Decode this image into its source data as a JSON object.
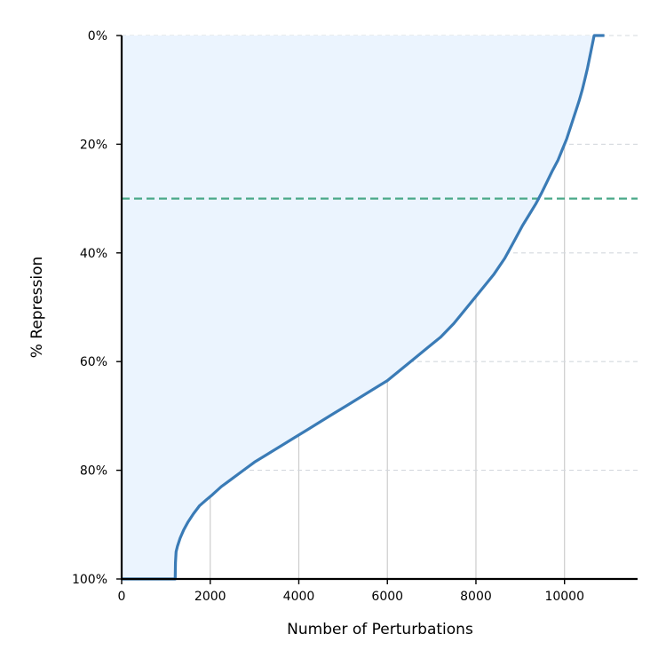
{
  "chart_data": {
    "type": "area",
    "title": "",
    "xlabel": "Number of Perturbations",
    "ylabel": "% Repression",
    "xlim": [
      0,
      11650
    ],
    "ylim": [
      0,
      100
    ],
    "y_axis_inverted": true,
    "x_ticks": [
      0,
      2000,
      4000,
      6000,
      8000,
      10000
    ],
    "x_tick_labels": [
      "0",
      "2000",
      "4000",
      "6000",
      "8000",
      "10000"
    ],
    "y_ticks": [
      0,
      20,
      40,
      60,
      80,
      100
    ],
    "y_tick_labels": [
      "0%",
      "20%",
      "40%",
      "60%",
      "80%",
      "100%"
    ],
    "grid": {
      "x": "solid vertical",
      "y": "dashed horizontal"
    },
    "threshold": {
      "y": 30,
      "style": "dashed"
    },
    "series": [
      {
        "x": [
          0,
          1210,
          1215,
          1230,
          1260,
          1320,
          1400,
          1500,
          1620,
          1760,
          1900,
          2050,
          2250,
          2500,
          2750,
          3000,
          3300,
          3600,
          3900,
          4200,
          4500,
          4800,
          5100,
          5400,
          5700,
          6000,
          6300,
          6600,
          6900,
          7200,
          7500,
          7800,
          8100,
          8400,
          8650,
          8850,
          9050,
          9200,
          9350,
          9480,
          9600,
          9720,
          9850,
          9950,
          10050,
          10150,
          10250,
          10330,
          10400,
          10460,
          10520,
          10570,
          10620,
          10670,
          10700,
          10900
        ],
        "y": [
          100,
          100,
          97,
          95,
          94,
          92.5,
          91,
          89.5,
          88,
          86.5,
          85.5,
          84.5,
          83,
          81.5,
          80,
          78.5,
          77,
          75.5,
          74,
          72.5,
          71,
          69.5,
          68,
          66.5,
          65,
          63.5,
          61.5,
          59.5,
          57.5,
          55.5,
          53,
          50,
          47,
          44,
          41,
          38,
          35,
          33,
          31,
          29,
          27,
          25,
          23,
          21,
          19,
          16.5,
          14,
          12,
          10,
          8,
          6,
          4,
          2,
          0,
          0,
          0
        ]
      }
    ],
    "colors": {
      "line": "#3a7bb6",
      "fill": "#ebf4fe",
      "threshold": "#4aa888",
      "grid_vertical": "#cccccc",
      "grid_horizontal": "#d4d8dd",
      "axis": "#000000"
    }
  }
}
